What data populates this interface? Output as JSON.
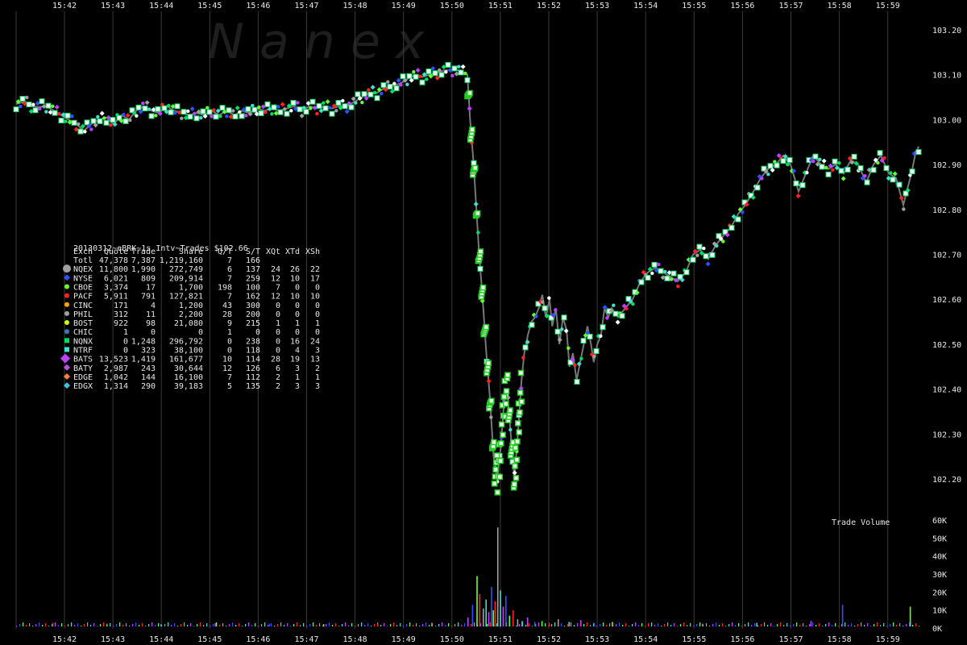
{
  "watermark": "N a n e x",
  "chart_data": {
    "type": "scatter",
    "title": "20130312~eBRK~1s Intv~Trades $102.66",
    "time_labels": [
      "15:42",
      "15:43",
      "15:44",
      "15:45",
      "15:46",
      "15:47",
      "15:48",
      "15:49",
      "15:50",
      "15:51",
      "15:52",
      "15:53",
      "15:54",
      "15:55",
      "15:56",
      "15:57",
      "15:58",
      "15:59"
    ],
    "price_ticks": [
      "103.20",
      "103.10",
      "103.00",
      "102.90",
      "102.80",
      "102.70",
      "102.60",
      "102.50",
      "102.40",
      "102.30",
      "102.20"
    ],
    "volume_ticks": [
      "60K",
      "50K",
      "40K",
      "30K",
      "20K",
      "10K",
      "0K"
    ],
    "volume_label": "Trade Volume",
    "price_range": [
      102.135,
      103.225
    ],
    "volume_range": [
      0,
      60000
    ],
    "time_range_minutes": [
      15.641,
      16.0
    ],
    "grid": true,
    "price_path": [
      [
        0.0,
        103.035
      ],
      [
        0.01,
        103.04
      ],
      [
        0.017,
        103.03
      ],
      [
        0.025,
        103.028
      ],
      [
        0.033,
        103.03
      ],
      [
        0.042,
        103.02
      ],
      [
        0.05,
        103.01
      ],
      [
        0.058,
        103.0
      ],
      [
        0.067,
        102.99
      ],
      [
        0.075,
        102.975
      ],
      [
        0.083,
        102.99
      ],
      [
        0.092,
        103.0
      ],
      [
        0.1,
        103.005
      ],
      [
        0.108,
        102.99
      ],
      [
        0.117,
        103.01
      ],
      [
        0.125,
        103.0
      ],
      [
        0.133,
        103.02
      ],
      [
        0.142,
        103.03
      ],
      [
        0.15,
        103.02
      ],
      [
        0.158,
        103.015
      ],
      [
        0.167,
        103.03
      ],
      [
        0.175,
        103.02
      ],
      [
        0.183,
        103.015
      ],
      [
        0.192,
        103.01
      ],
      [
        0.2,
        103.015
      ],
      [
        0.208,
        103.01
      ],
      [
        0.217,
        103.02
      ],
      [
        0.225,
        103.01
      ],
      [
        0.233,
        103.02
      ],
      [
        0.242,
        103.01
      ],
      [
        0.25,
        103.02
      ],
      [
        0.258,
        103.015
      ],
      [
        0.267,
        103.025
      ],
      [
        0.275,
        103.02
      ],
      [
        0.283,
        103.025
      ],
      [
        0.292,
        103.02
      ],
      [
        0.3,
        103.025
      ],
      [
        0.308,
        103.03
      ],
      [
        0.317,
        103.02
      ],
      [
        0.325,
        103.03
      ],
      [
        0.333,
        103.025
      ],
      [
        0.342,
        103.03
      ],
      [
        0.35,
        103.025
      ],
      [
        0.358,
        103.03
      ],
      [
        0.367,
        103.03
      ],
      [
        0.375,
        103.04
      ],
      [
        0.383,
        103.05
      ],
      [
        0.392,
        103.06
      ],
      [
        0.4,
        103.06
      ],
      [
        0.408,
        103.07
      ],
      [
        0.417,
        103.075
      ],
      [
        0.425,
        103.08
      ],
      [
        0.433,
        103.09
      ],
      [
        0.442,
        103.1
      ],
      [
        0.45,
        103.095
      ],
      [
        0.458,
        103.1
      ],
      [
        0.467,
        103.105
      ],
      [
        0.475,
        103.11
      ],
      [
        0.483,
        103.11
      ],
      [
        0.492,
        103.11
      ],
      [
        0.5,
        103.1
      ],
      [
        0.503,
        103.0
      ],
      [
        0.507,
        102.9
      ],
      [
        0.51,
        102.8
      ],
      [
        0.513,
        102.7
      ],
      [
        0.517,
        102.6
      ],
      [
        0.521,
        102.48
      ],
      [
        0.525,
        102.38
      ],
      [
        0.529,
        102.25
      ],
      [
        0.533,
        102.2
      ],
      [
        0.537,
        102.27
      ],
      [
        0.541,
        102.38
      ],
      [
        0.544,
        102.4
      ],
      [
        0.548,
        102.3
      ],
      [
        0.552,
        102.2
      ],
      [
        0.556,
        102.3
      ],
      [
        0.56,
        102.42
      ],
      [
        0.563,
        102.48
      ],
      [
        0.567,
        102.52
      ],
      [
        0.571,
        102.55
      ],
      [
        0.575,
        102.56
      ],
      [
        0.579,
        102.58
      ],
      [
        0.583,
        102.61
      ],
      [
        0.587,
        102.56
      ],
      [
        0.591,
        102.6
      ],
      [
        0.594,
        102.54
      ],
      [
        0.598,
        102.58
      ],
      [
        0.602,
        102.5
      ],
      [
        0.606,
        102.56
      ],
      [
        0.61,
        102.53
      ],
      [
        0.613,
        102.45
      ],
      [
        0.617,
        102.48
      ],
      [
        0.621,
        102.42
      ],
      [
        0.625,
        102.46
      ],
      [
        0.629,
        102.5
      ],
      [
        0.633,
        102.54
      ],
      [
        0.637,
        102.5
      ],
      [
        0.64,
        102.46
      ],
      [
        0.644,
        102.5
      ],
      [
        0.648,
        102.52
      ],
      [
        0.652,
        102.58
      ],
      [
        0.656,
        102.56
      ],
      [
        0.66,
        102.58
      ],
      [
        0.667,
        102.56
      ],
      [
        0.675,
        102.58
      ],
      [
        0.683,
        102.6
      ],
      [
        0.692,
        102.64
      ],
      [
        0.7,
        102.66
      ],
      [
        0.708,
        102.67
      ],
      [
        0.717,
        102.66
      ],
      [
        0.725,
        102.65
      ],
      [
        0.733,
        102.64
      ],
      [
        0.742,
        102.66
      ],
      [
        0.75,
        102.7
      ],
      [
        0.758,
        102.71
      ],
      [
        0.767,
        102.69
      ],
      [
        0.775,
        102.72
      ],
      [
        0.783,
        102.74
      ],
      [
        0.792,
        102.76
      ],
      [
        0.8,
        102.79
      ],
      [
        0.808,
        102.81
      ],
      [
        0.817,
        102.84
      ],
      [
        0.825,
        102.87
      ],
      [
        0.833,
        102.89
      ],
      [
        0.842,
        102.9
      ],
      [
        0.85,
        102.92
      ],
      [
        0.858,
        102.9
      ],
      [
        0.867,
        102.84
      ],
      [
        0.875,
        102.88
      ],
      [
        0.883,
        102.92
      ],
      [
        0.892,
        102.9
      ],
      [
        0.9,
        102.89
      ],
      [
        0.908,
        102.9
      ],
      [
        0.917,
        102.88
      ],
      [
        0.925,
        102.91
      ],
      [
        0.933,
        102.9
      ],
      [
        0.942,
        102.86
      ],
      [
        0.95,
        102.9
      ],
      [
        0.958,
        102.92
      ],
      [
        0.967,
        102.88
      ],
      [
        0.975,
        102.87
      ],
      [
        0.983,
        102.81
      ],
      [
        0.988,
        102.85
      ],
      [
        0.992,
        102.88
      ],
      [
        0.996,
        102.92
      ],
      [
        1.0,
        102.94
      ]
    ],
    "volume_spikes": [
      [
        0.5,
        5000
      ],
      [
        0.505,
        12000
      ],
      [
        0.51,
        28000
      ],
      [
        0.513,
        18000
      ],
      [
        0.517,
        10000
      ],
      [
        0.52,
        15000
      ],
      [
        0.523,
        8000
      ],
      [
        0.526,
        22000
      ],
      [
        0.528,
        9000
      ],
      [
        0.53,
        14000
      ],
      [
        0.533,
        55000
      ],
      [
        0.536,
        20000
      ],
      [
        0.539,
        11000
      ],
      [
        0.542,
        17000
      ],
      [
        0.546,
        6000
      ],
      [
        0.55,
        9000
      ],
      [
        0.555,
        4000
      ],
      [
        0.56,
        3000
      ],
      [
        0.566,
        5000
      ],
      [
        0.574,
        2500
      ],
      [
        0.582,
        3000
      ],
      [
        0.59,
        2000
      ],
      [
        0.6,
        4000
      ],
      [
        0.612,
        2500
      ],
      [
        0.625,
        3500
      ],
      [
        0.64,
        2000
      ],
      [
        0.66,
        2500
      ],
      [
        0.7,
        1800
      ],
      [
        0.76,
        1500
      ],
      [
        0.82,
        2000
      ],
      [
        0.88,
        3000
      ],
      [
        0.915,
        12000
      ],
      [
        0.99,
        11000
      ],
      [
        0.04,
        2000
      ],
      [
        0.1,
        1500
      ],
      [
        0.16,
        1200
      ],
      [
        0.22,
        1800
      ],
      [
        0.28,
        1500
      ],
      [
        0.34,
        1300
      ],
      [
        0.4,
        1600
      ],
      [
        0.46,
        2000
      ]
    ],
    "exchange_table": {
      "headers": [
        "Exch",
        "Quote",
        "Trade",
        "Share",
        "Q/T",
        "S/T",
        "XQt",
        "XTd",
        "XSh"
      ],
      "rows": [
        {
          "name": "Totl",
          "color": "",
          "shape": "none",
          "cells": [
            "Totl",
            "47,378",
            "7,387",
            "1,219,160",
            "7",
            "166",
            "",
            "",
            ""
          ]
        },
        {
          "name": "NQEX",
          "color": "#a0a0a0",
          "shape": "circle-lg",
          "cells": [
            "NQEX",
            "11,800",
            "1,990",
            "272,749",
            "6",
            "137",
            "24",
            "26",
            "22"
          ]
        },
        {
          "name": "NYSE",
          "color": "#3050ff",
          "shape": "diamond",
          "cells": [
            "NYSE",
            "6,021",
            "809",
            "209,914",
            "7",
            "259",
            "12",
            "10",
            "17"
          ]
        },
        {
          "name": "CBOE",
          "color": "#66ff33",
          "shape": "circle",
          "cells": [
            "CBOE",
            "3,374",
            "17",
            "1,700",
            "198",
            "100",
            "7",
            "0",
            "0"
          ]
        },
        {
          "name": "PACF",
          "color": "#ff2020",
          "shape": "circle",
          "cells": [
            "PACF",
            "5,911",
            "791",
            "127,821",
            "7",
            "162",
            "12",
            "10",
            "10"
          ]
        },
        {
          "name": "CINC",
          "color": "#ffa500",
          "shape": "circle",
          "cells": [
            "CINC",
            "171",
            "4",
            "1,200",
            "43",
            "300",
            "0",
            "0",
            "0"
          ]
        },
        {
          "name": "PHIL",
          "color": "#a0a0a0",
          "shape": "circle",
          "cells": [
            "PHIL",
            "312",
            "11",
            "2,200",
            "28",
            "200",
            "0",
            "0",
            "0"
          ]
        },
        {
          "name": "BOST",
          "color": "#ccff00",
          "shape": "circle",
          "cells": [
            "BOST",
            "922",
            "98",
            "21,080",
            "9",
            "215",
            "1",
            "1",
            "1"
          ]
        },
        {
          "name": "CHIC",
          "color": "#3a78b0",
          "shape": "circle",
          "cells": [
            "CHIC",
            "1",
            "0",
            "0",
            "1",
            "0",
            "0",
            "0",
            "0"
          ]
        },
        {
          "name": "NQNX",
          "color": "#00dd66",
          "shape": "square",
          "cells": [
            "NQNX",
            "0",
            "1,248",
            "296,792",
            "0",
            "238",
            "0",
            "16",
            "24"
          ]
        },
        {
          "name": "NTRF",
          "color": "#40e0d0",
          "shape": "square",
          "cells": [
            "NTRF",
            "0",
            "323",
            "38,100",
            "0",
            "118",
            "0",
            "4",
            "3"
          ]
        },
        {
          "name": "BATS",
          "color": "#c040ff",
          "shape": "diamond-lg",
          "cells": [
            "BATS",
            "13,523",
            "1,419",
            "161,677",
            "10",
            "114",
            "28",
            "19",
            "13"
          ]
        },
        {
          "name": "BATY",
          "color": "#c050e0",
          "shape": "diamond",
          "cells": [
            "BATY",
            "2,987",
            "243",
            "30,644",
            "12",
            "126",
            "6",
            "3",
            "2"
          ]
        },
        {
          "name": "EDGE",
          "color": "#ff8040",
          "shape": "diamond",
          "cells": [
            "EDGE",
            "1,042",
            "144",
            "16,100",
            "7",
            "112",
            "2",
            "1",
            "1"
          ]
        },
        {
          "name": "EDGX",
          "color": "#40c0e0",
          "shape": "diamond",
          "cells": [
            "EDGX",
            "1,314",
            "290",
            "39,183",
            "5",
            "135",
            "2",
            "3",
            "3"
          ]
        }
      ]
    }
  }
}
